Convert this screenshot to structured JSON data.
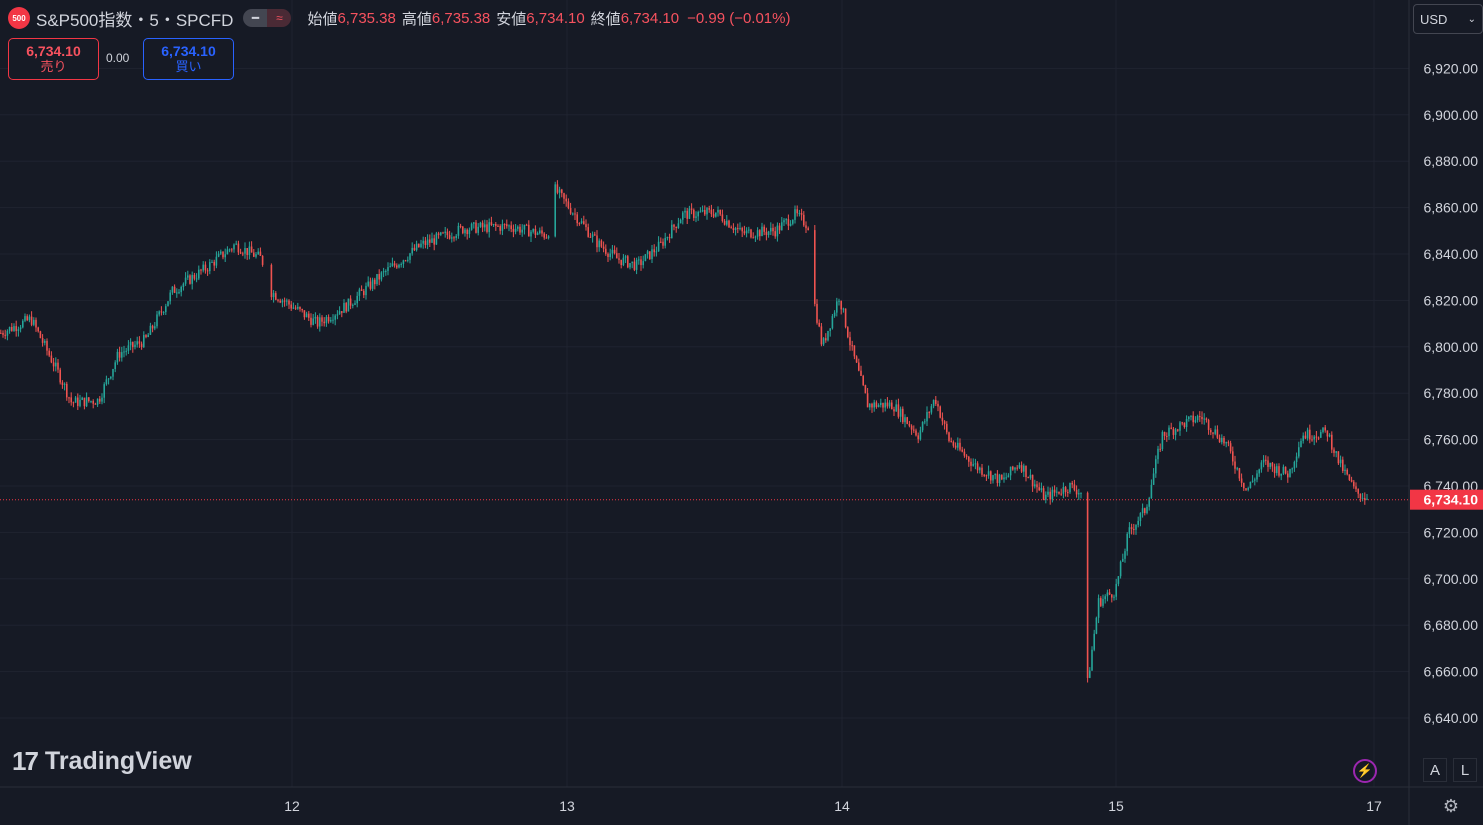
{
  "header": {
    "logo_text": "500",
    "symbol": "S&P500指数・5・SPCFD",
    "open_label": "始値",
    "open": "6,735.38",
    "high_label": "高値",
    "high": "6,735.38",
    "low_label": "安値",
    "low": "6,734.10",
    "close_label": "終値",
    "close": "6,734.10",
    "change": "−0.99 (−0.01%)"
  },
  "trade": {
    "sell_price": "6,734.10",
    "sell_label": "売り",
    "spread": "0.00",
    "buy_price": "6,734.10",
    "buy_label": "買い"
  },
  "currency": {
    "label": "USD",
    "icon": "chevron-down-icon"
  },
  "watermark": "TradingView",
  "axis_buttons": {
    "auto": "A",
    "log": "L"
  },
  "colors": {
    "background": "#161a25",
    "grid": "#1f2330",
    "up": "#26a69a",
    "down": "#ef5350",
    "text": "#d1d4dc",
    "price_badge": "#f23645",
    "buy": "#2962ff",
    "sell": "#f23645"
  },
  "chart_data": {
    "type": "candlestick",
    "interval_minutes": 5,
    "current_price": 6734.1,
    "current_price_label": "6,734.10",
    "ylim": [
      6620,
      6940
    ],
    "y_ticks": [
      6640,
      6660,
      6680,
      6700,
      6720,
      6740,
      6760,
      6780,
      6800,
      6820,
      6840,
      6860,
      6880,
      6900,
      6920
    ],
    "y_tick_labels": [
      "6,640.00",
      "6,660.00",
      "6,680.00",
      "6,700.00",
      "6,720.00",
      "6,740.00",
      "6,760.00",
      "6,780.00",
      "6,800.00",
      "6,820.00",
      "6,840.00",
      "6,860.00",
      "6,880.00",
      "6,900.00",
      "6,920.00"
    ],
    "x_labels": [
      "12",
      "13",
      "14",
      "15",
      "17"
    ],
    "grid": true,
    "price_path": [
      [
        0.0,
        6806
      ],
      [
        1.8,
        6812
      ],
      [
        3.6,
        6786
      ],
      [
        4.2,
        6776
      ],
      [
        5.8,
        6777
      ],
      [
        7.0,
        6797
      ],
      [
        8.6,
        6803
      ],
      [
        10.2,
        6824
      ],
      [
        12.2,
        6834
      ],
      [
        13.9,
        6844
      ],
      [
        15.5,
        6838
      ],
      [
        16.0,
        6824
      ],
      [
        17.2,
        6818
      ],
      [
        18.8,
        6810
      ],
      [
        20.6,
        6818
      ],
      [
        22.8,
        6832
      ],
      [
        25.0,
        6844
      ],
      [
        27.5,
        6851
      ],
      [
        30.2,
        6852
      ],
      [
        32.5,
        6848
      ],
      [
        32.9,
        6868
      ],
      [
        34.0,
        6858
      ],
      [
        35.4,
        6845
      ],
      [
        36.6,
        6838
      ],
      [
        37.8,
        6835
      ],
      [
        39.2,
        6844
      ],
      [
        40.5,
        6857
      ],
      [
        42.5,
        6858
      ],
      [
        44.0,
        6849
      ],
      [
        46.0,
        6850
      ],
      [
        47.2,
        6857
      ],
      [
        48.0,
        6852
      ],
      [
        48.3,
        6820
      ],
      [
        48.8,
        6800
      ],
      [
        49.8,
        6822
      ],
      [
        50.5,
        6800
      ],
      [
        51.5,
        6775
      ],
      [
        53.0,
        6775
      ],
      [
        54.5,
        6762
      ],
      [
        55.5,
        6778
      ],
      [
        56.3,
        6760
      ],
      [
        58.0,
        6748
      ],
      [
        59.5,
        6742
      ],
      [
        60.5,
        6750
      ],
      [
        62.0,
        6735
      ],
      [
        63.5,
        6740
      ],
      [
        64.2,
        6737
      ],
      [
        64.5,
        6652
      ],
      [
        65.2,
        6690
      ],
      [
        66.2,
        6695
      ],
      [
        67.0,
        6720
      ],
      [
        68.0,
        6730
      ],
      [
        69.0,
        6762
      ],
      [
        70.3,
        6767
      ],
      [
        71.3,
        6770
      ],
      [
        72.8,
        6758
      ],
      [
        74.0,
        6738
      ],
      [
        75.0,
        6750
      ],
      [
        76.5,
        6745
      ],
      [
        77.3,
        6762
      ],
      [
        78.8,
        6763
      ],
      [
        79.5,
        6750
      ],
      [
        80.5,
        6737
      ],
      [
        81.2,
        6735
      ]
    ]
  }
}
